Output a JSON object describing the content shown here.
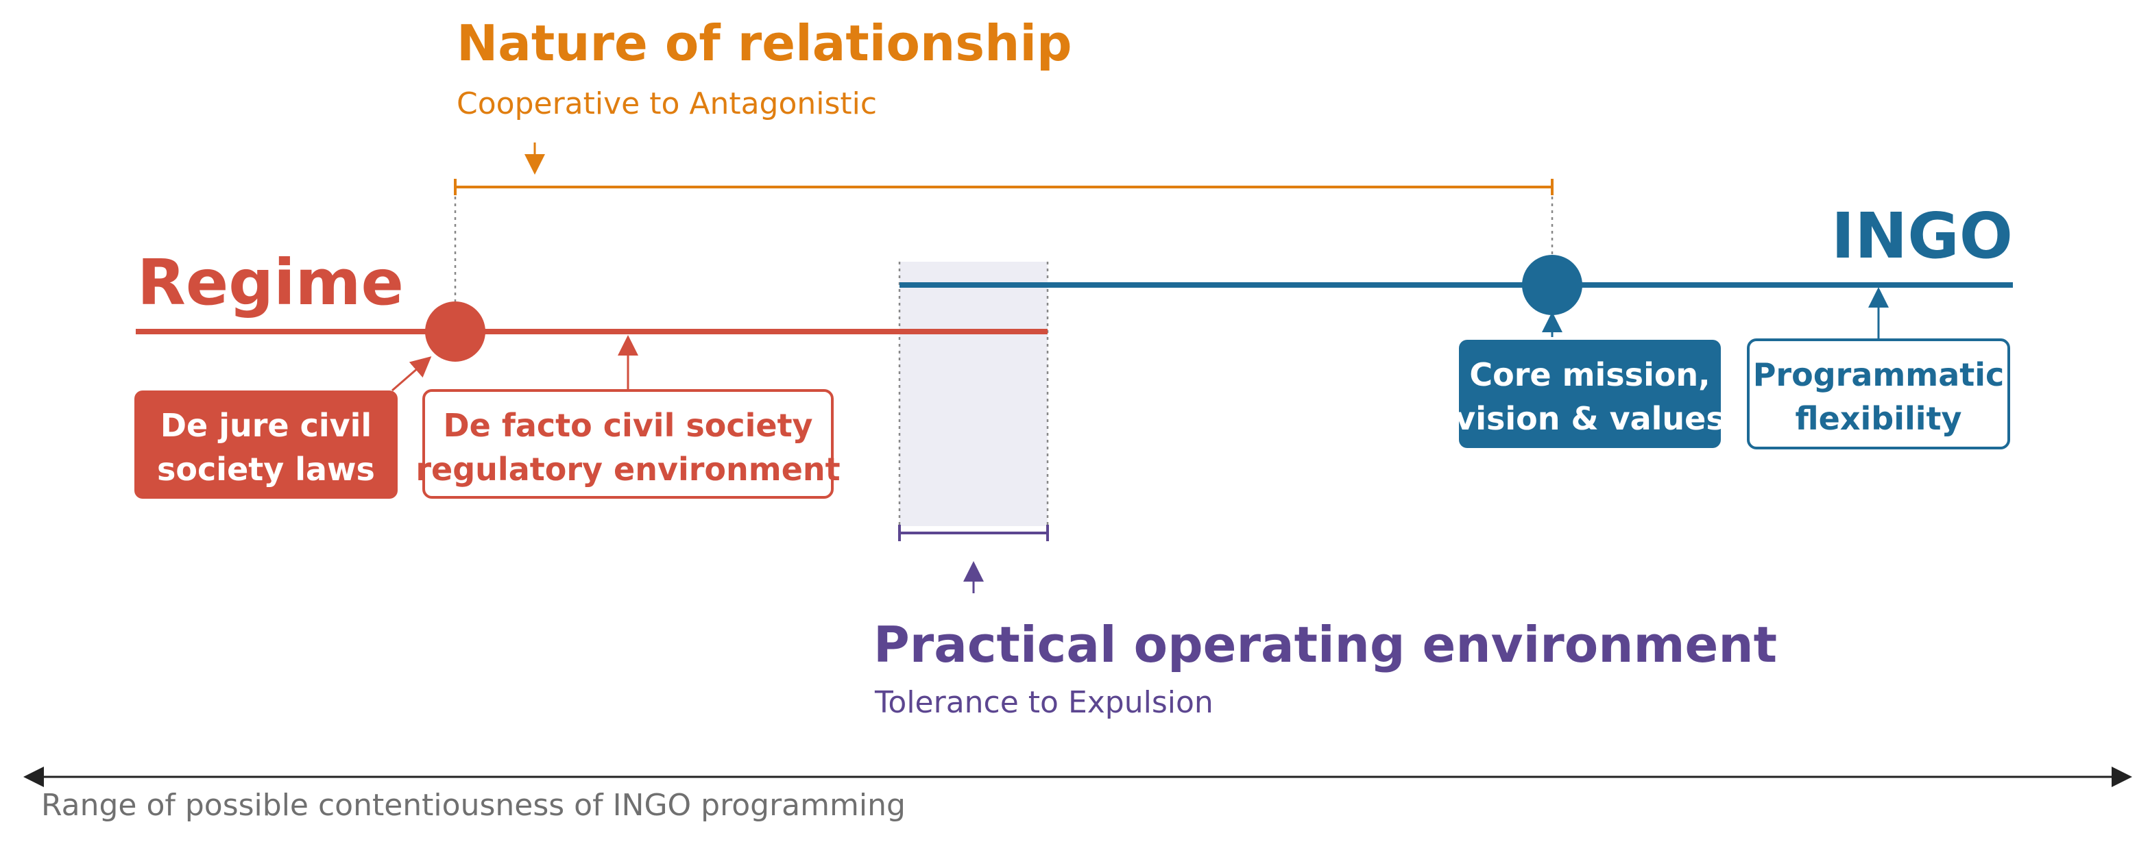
{
  "colors": {
    "orange": "#E07E10",
    "red": "#D14F3E",
    "blue": "#1D6A96",
    "purple": "#5C4690",
    "shade": "#EDEDF4",
    "grey": "#707070",
    "black": "#222222"
  },
  "relationship": {
    "title": "Nature of relationship",
    "subtitle": "Cooperative to Antagonistic"
  },
  "regime": {
    "label": "Regime",
    "dejure_line1": "De jure civil",
    "dejure_line2": "society laws",
    "defacto_line1": "De facto civil society",
    "defacto_line2": "regulatory environment"
  },
  "ingo": {
    "label": "INGO",
    "core_line1": "Core mission,",
    "core_line2": "vision & values",
    "flex_line1": "Programmatic",
    "flex_line2": "flexibility"
  },
  "practical": {
    "title": "Practical operating environment",
    "subtitle": "Tolerance to Expulsion"
  },
  "axis": {
    "label": "Range of possible contentiousness of INGO programming"
  }
}
